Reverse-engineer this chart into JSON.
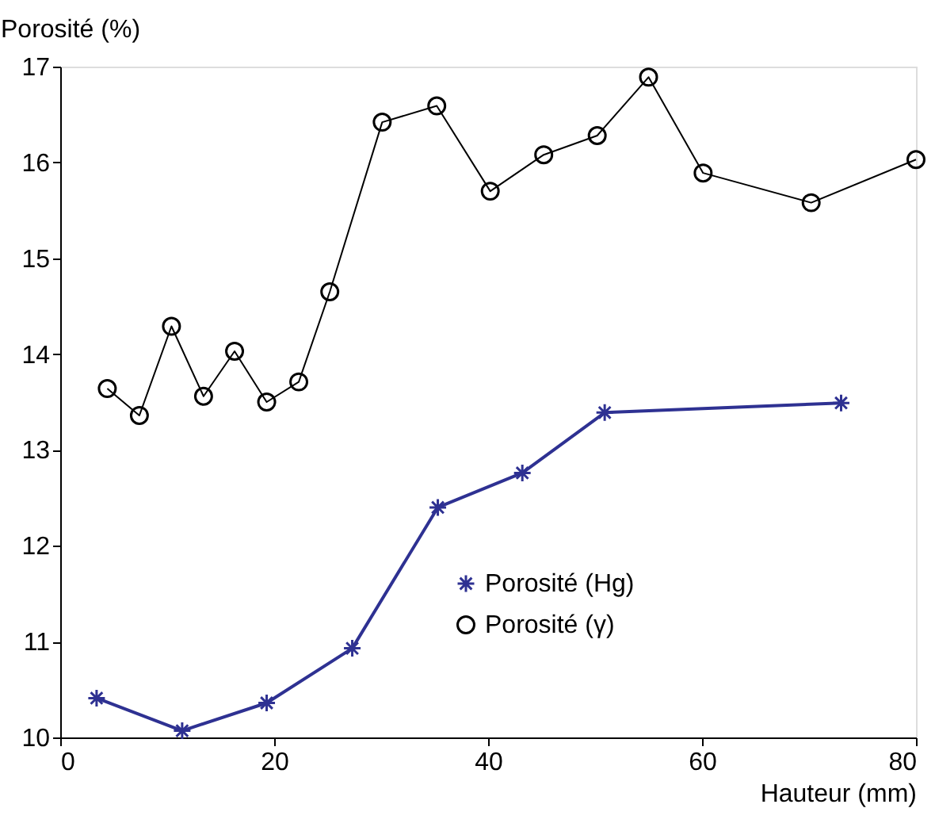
{
  "chart_data": {
    "type": "line",
    "xlabel": "Hauteur (mm)",
    "ylabel": "Porosité (%)",
    "xlim": [
      0,
      80
    ],
    "xticks": [
      0,
      20,
      40,
      60,
      80
    ],
    "ylim": [
      10,
      17
    ],
    "yticks": [
      10,
      11,
      12,
      13,
      14,
      15,
      16,
      17
    ],
    "grid": false,
    "legend": "bottom right",
    "line_style": "solid",
    "series": [
      {
        "name": "Porosité (Hg)",
        "color": "#2e3192",
        "marker": "cross",
        "x": [
          3.4,
          11.4,
          19.3,
          27.3,
          35.3,
          43.2,
          50.9,
          73.0
        ],
        "values": [
          10.41,
          10.07,
          10.36,
          10.93,
          12.4,
          12.76,
          13.39,
          13.49
        ]
      },
      {
        "name": "Porosité (γ)",
        "color": "#000000",
        "marker": "circle",
        "x": [
          4.4,
          7.4,
          10.4,
          13.4,
          16.3,
          19.3,
          22.3,
          25.2,
          30.1,
          35.2,
          40.2,
          45.2,
          50.2,
          55.0,
          60.1,
          70.2,
          80.0
        ],
        "values": [
          13.64,
          13.36,
          14.29,
          13.56,
          14.03,
          13.5,
          13.71,
          14.65,
          16.42,
          16.59,
          15.7,
          16.08,
          16.28,
          16.89,
          15.89,
          15.58,
          16.03
        ]
      }
    ]
  }
}
